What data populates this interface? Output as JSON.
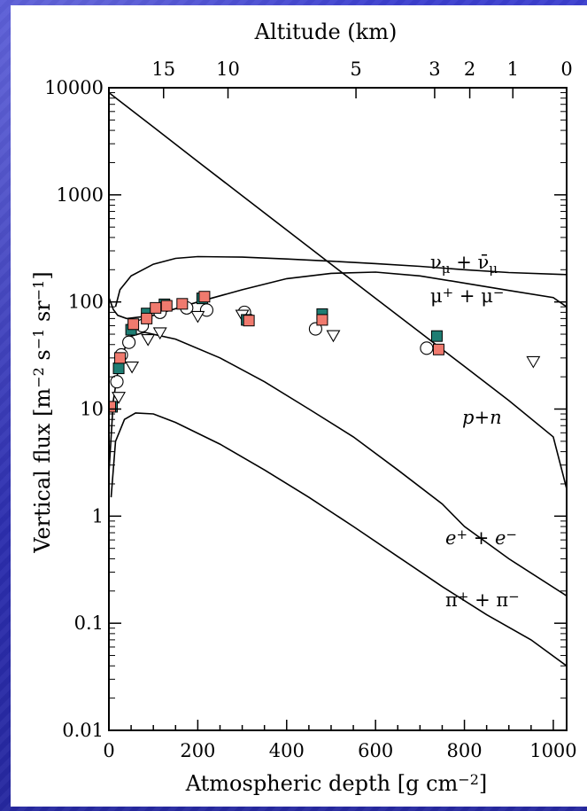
{
  "chart_data": {
    "type": "line",
    "title": "",
    "xlabel": "Atmospheric depth [g cm",
    "xlabel_exp": "−2",
    "xlabel_close": "]",
    "x2label": "Altitude (km)",
    "ylabel": "Vertical flux [m",
    "ylabel_parts": [
      "Vertical flux",
      "[m",
      "−2",
      "s",
      "−1",
      "sr",
      "−1",
      "]"
    ],
    "xlim": [
      0,
      1030
    ],
    "ylim": [
      0.01,
      10000
    ],
    "yscale": "log",
    "x_ticks": [
      "0",
      "200",
      "400",
      "600",
      "800",
      "1000"
    ],
    "x_tick_values": [
      0,
      200,
      400,
      600,
      800,
      1000
    ],
    "y_ticks": [
      "0.01",
      "0.1",
      "1",
      "10",
      "100",
      "1000",
      "10000"
    ],
    "y_tick_values": [
      0.01,
      0.1,
      1,
      10,
      100,
      1000,
      10000
    ],
    "x2_ticks": [
      "15",
      "10",
      "5",
      "3",
      "2",
      "1",
      "0"
    ],
    "x2_tick_depths": [
      123,
      268,
      556,
      733,
      812,
      909,
      1030
    ],
    "series": [
      {
        "name": "p + n",
        "label_parts": [
          {
            "t": "p",
            "it": true
          },
          {
            "t": "+",
            "it": false
          },
          {
            "t": "n",
            "it": true
          }
        ],
        "x": [
          0,
          100,
          200,
          300,
          400,
          500,
          600,
          700,
          800,
          900,
          1000,
          1030
        ],
        "y": [
          9000,
          4300,
          2050,
          980,
          470,
          225,
          108,
          52,
          25,
          12,
          5.5,
          1.8
        ]
      },
      {
        "name": "νμ + ν̄μ",
        "label_parts": [
          {
            "t": "ν",
            "it": false
          },
          {
            "t": "μ",
            "sub": true
          },
          {
            "t": " + ",
            "it": false
          },
          {
            "t": "ν̄",
            "it": false
          },
          {
            "t": "μ",
            "sub": true
          }
        ],
        "x": [
          15,
          25,
          50,
          100,
          150,
          200,
          300,
          400,
          500,
          600,
          700,
          800,
          900,
          1030
        ],
        "y": [
          90,
          130,
          175,
          225,
          255,
          265,
          262,
          252,
          240,
          228,
          215,
          200,
          188,
          180
        ]
      },
      {
        "name": "μ+ + μ−",
        "label_parts": [
          {
            "t": "μ",
            "it": false
          },
          {
            "t": "+",
            "sup": true
          },
          {
            "t": " + ",
            "it": false
          },
          {
            "t": "μ",
            "it": false
          },
          {
            "t": "−",
            "sup": true
          }
        ],
        "x": [
          0,
          10,
          20,
          40,
          100,
          200,
          300,
          400,
          500,
          600,
          700,
          800,
          900,
          1000,
          1030
        ],
        "y": [
          110,
          85,
          75,
          70,
          75,
          100,
          130,
          165,
          185,
          190,
          175,
          150,
          128,
          110,
          90
        ]
      },
      {
        "name": "e+ + e−",
        "label_parts": [
          {
            "t": "e",
            "it": true
          },
          {
            "t": "+",
            "sup": true
          },
          {
            "t": " + ",
            "it": false
          },
          {
            "t": "e",
            "it": true
          },
          {
            "t": "−",
            "sup": true
          }
        ],
        "x": [
          0,
          10,
          25,
          50,
          80,
          150,
          250,
          350,
          450,
          550,
          650,
          750,
          800,
          900,
          1030
        ],
        "y": [
          2.5,
          12,
          30,
          48,
          52,
          45,
          30,
          18,
          10,
          5.5,
          2.7,
          1.3,
          0.8,
          0.4,
          0.18
        ]
      },
      {
        "name": "π+ + π−",
        "label_parts": [
          {
            "t": "π",
            "it": false
          },
          {
            "t": "+",
            "sup": true
          },
          {
            "t": " + ",
            "it": false
          },
          {
            "t": "π",
            "it": false
          },
          {
            "t": "−",
            "sup": true
          }
        ],
        "x": [
          5,
          15,
          35,
          60,
          100,
          150,
          250,
          350,
          450,
          550,
          650,
          750,
          850,
          950,
          1030
        ],
        "y": [
          1.5,
          5,
          8,
          9.2,
          9.0,
          7.5,
          4.7,
          2.7,
          1.5,
          0.8,
          0.42,
          0.22,
          0.12,
          0.07,
          0.04
        ]
      }
    ],
    "measurements": {
      "dark_squares": {
        "color": "#1e7d73",
        "x": [
          7,
          22,
          50,
          85,
          125,
          210,
          310,
          480,
          738
        ],
        "y": [
          10.5,
          24,
          55,
          78,
          95,
          108,
          68,
          77,
          48
        ]
      },
      "pink_squares": {
        "color": "#f07a6e",
        "x": [
          3,
          25,
          55,
          85,
          105,
          130,
          165,
          215,
          315,
          480,
          742
        ],
        "y": [
          10.5,
          30,
          62,
          70,
          88,
          92,
          96,
          112,
          67,
          68,
          36
        ]
      },
      "open_circles": {
        "color": "#ffffff",
        "x": [
          18,
          28,
          45,
          75,
          115,
          175,
          220,
          305,
          465,
          715
        ],
        "y": [
          18,
          32,
          42,
          60,
          80,
          88,
          84,
          80,
          56,
          37
        ]
      },
      "open_triangles": {
        "color": "#ffffff",
        "x": [
          22,
          52,
          88,
          115,
          200,
          300,
          505,
          955
        ],
        "y": [
          13,
          25,
          45,
          52,
          74,
          76,
          49,
          28
        ]
      }
    }
  }
}
